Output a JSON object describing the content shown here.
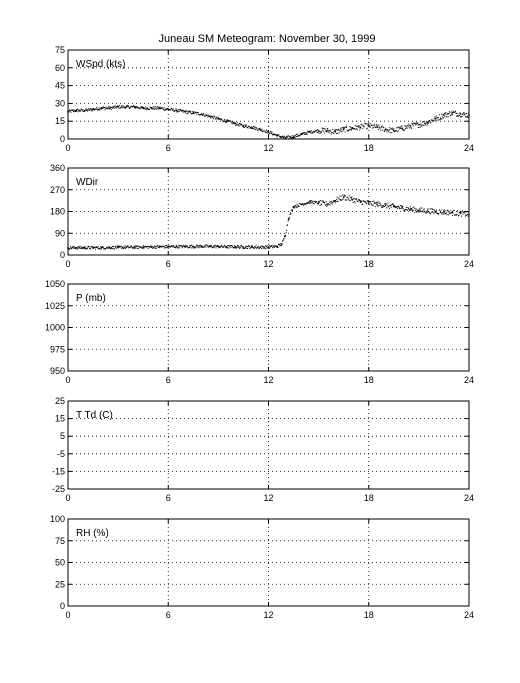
{
  "title": "Juneau SM Meteogram:  November 30, 1999",
  "chart_data": [
    {
      "type": "scatter",
      "panel_label": "WSpd (kts)",
      "xlim": [
        0,
        24
      ],
      "ylim": [
        0,
        75
      ],
      "xticks": [
        "0",
        "6",
        "12",
        "18",
        "24"
      ],
      "yticks": [
        "0",
        "15",
        "30",
        "45",
        "60",
        "75"
      ],
      "grid": true,
      "series": [
        {
          "x": [
            0,
            0.5,
            1,
            1.5,
            2,
            2.5,
            3,
            3.5,
            4,
            4.5,
            5,
            5.5,
            6,
            6.5,
            7,
            7.5,
            8,
            8.5,
            9,
            9.5,
            10,
            10.5,
            11,
            11.5,
            12,
            12.5,
            13,
            13.5,
            14,
            14.5,
            15,
            15.5,
            16,
            16.5,
            17,
            17.5,
            18,
            18.5,
            19,
            19.5,
            20,
            20.5,
            21,
            21.5,
            22,
            22.5,
            23,
            23.5,
            24
          ],
          "y": [
            23,
            24,
            24,
            25,
            26,
            26,
            27,
            27,
            27,
            26,
            26,
            26,
            25,
            24,
            23,
            22,
            21,
            19,
            17,
            15,
            13,
            11,
            10,
            8,
            6,
            3,
            1,
            2,
            4,
            6,
            7,
            7,
            6,
            8,
            9,
            10,
            11,
            10,
            8,
            7,
            9,
            11,
            12,
            14,
            17,
            20,
            22,
            21,
            20
          ]
        }
      ]
    },
    {
      "type": "scatter",
      "panel_label": "WDir",
      "xlim": [
        0,
        24
      ],
      "ylim": [
        0,
        360
      ],
      "xticks": [
        "0",
        "6",
        "12",
        "18",
        "24"
      ],
      "yticks": [
        "0",
        "90",
        "180",
        "270",
        "360"
      ],
      "grid": true,
      "series": [
        {
          "x": [
            0,
            0.5,
            1,
            1.5,
            2,
            2.5,
            3,
            3.5,
            4,
            4.5,
            5,
            5.5,
            6,
            6.5,
            7,
            7.5,
            8,
            8.5,
            9,
            9.5,
            10,
            10.5,
            11,
            11.5,
            12,
            12.5,
            12.8,
            13,
            13.2,
            13.5,
            14,
            14.5,
            15,
            15.5,
            16,
            16.5,
            17,
            17.5,
            18,
            18.5,
            19,
            19.5,
            20,
            20.5,
            21,
            21.5,
            22,
            22.5,
            23,
            23.5,
            24
          ],
          "y": [
            30,
            30,
            30,
            30,
            30,
            31,
            31,
            32,
            32,
            33,
            33,
            34,
            34,
            35,
            35,
            35,
            36,
            35,
            35,
            34,
            34,
            33,
            33,
            32,
            33,
            35,
            45,
            80,
            150,
            200,
            210,
            220,
            215,
            210,
            225,
            240,
            230,
            220,
            215,
            210,
            205,
            200,
            195,
            190,
            185,
            182,
            180,
            178,
            175,
            172,
            168
          ]
        }
      ]
    },
    {
      "type": "scatter",
      "panel_label": "P (mb)",
      "xlim": [
        0,
        24
      ],
      "ylim": [
        950,
        1050
      ],
      "xticks": [
        "0",
        "6",
        "12",
        "18",
        "24"
      ],
      "yticks": [
        "950",
        "975",
        "1000",
        "1025",
        "1050"
      ],
      "grid": true,
      "series": []
    },
    {
      "type": "scatter",
      "panel_label": "T Td (C)",
      "xlim": [
        0,
        24
      ],
      "ylim": [
        -25,
        25
      ],
      "xticks": [
        "0",
        "6",
        "12",
        "18",
        "24"
      ],
      "yticks": [
        "-25",
        "-15",
        "-5",
        "5",
        "15",
        "25"
      ],
      "grid": true,
      "series": []
    },
    {
      "type": "scatter",
      "panel_label": "RH (%)",
      "xlim": [
        0,
        24
      ],
      "ylim": [
        0,
        100
      ],
      "xticks": [
        "0",
        "6",
        "12",
        "18",
        "24"
      ],
      "yticks": [
        "0",
        "25",
        "50",
        "75",
        "100"
      ],
      "grid": true,
      "series": []
    }
  ]
}
